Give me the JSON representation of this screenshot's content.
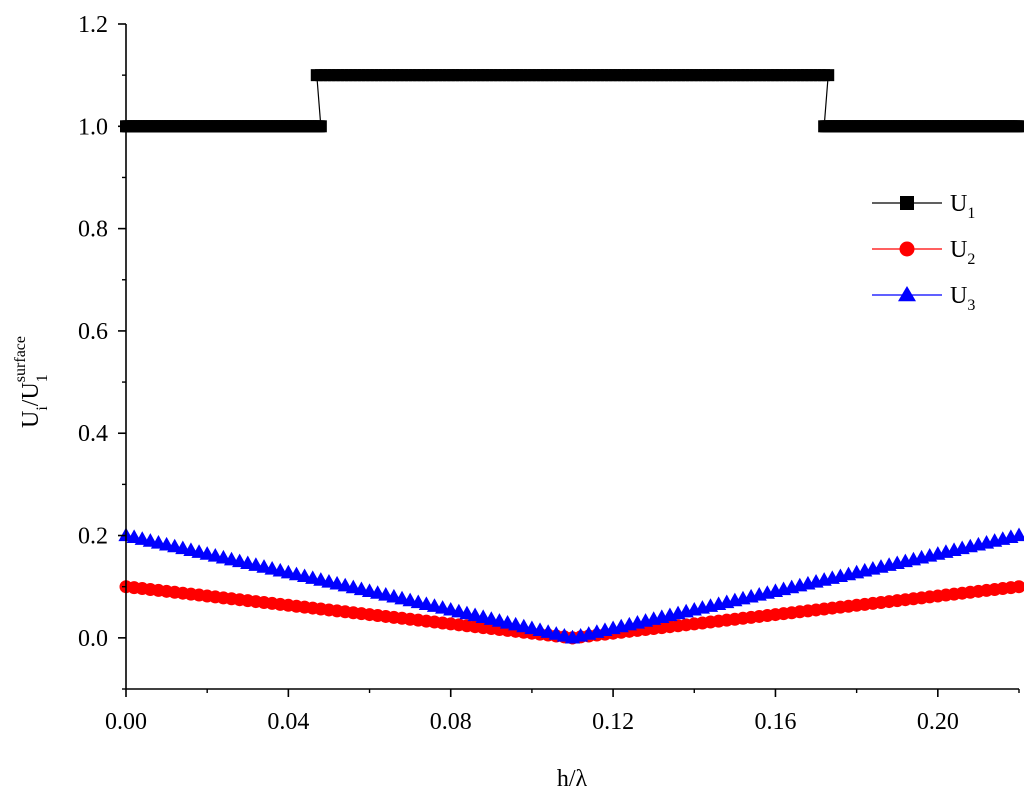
{
  "chart_data": {
    "type": "line",
    "xlabel": "h/λ",
    "ylabel": {
      "base": "U",
      "sub1": "i",
      "slash": "/U",
      "sub2": "1",
      "sup2": "surface"
    },
    "xlim": [
      0.0,
      0.22
    ],
    "ylim": [
      -0.1,
      1.2
    ],
    "x_ticks": [
      0.0,
      0.04,
      0.08,
      0.12,
      0.16,
      0.2
    ],
    "x_tick_labels": [
      "0.00",
      "0.04",
      "0.08",
      "0.12",
      "0.16",
      "0.20"
    ],
    "y_ticks": [
      0.0,
      0.2,
      0.4,
      0.6,
      0.8,
      1.0,
      1.2
    ],
    "y_tick_labels": [
      "0.0",
      "0.2",
      "0.4",
      "0.6",
      "0.8",
      "1.0",
      "1.2"
    ],
    "grid": false,
    "legend_position": "right",
    "series": [
      {
        "name": "U",
        "name_sub": "1",
        "color": "#000000",
        "marker": "square",
        "segments": [
          {
            "x_start": 0.0,
            "x_end": 0.048,
            "y": 1.0
          },
          {
            "x_start": 0.047,
            "x_end": 0.173,
            "y": 1.1
          },
          {
            "x_start": 0.172,
            "x_end": 0.22,
            "y": 1.0
          }
        ]
      },
      {
        "name": "U",
        "name_sub": "2",
        "color": "#ff0000",
        "marker": "circle",
        "points": [
          [
            0.0,
            0.1
          ],
          [
            0.11,
            0.0
          ],
          [
            0.22,
            0.1
          ]
        ]
      },
      {
        "name": "U",
        "name_sub": "3",
        "color": "#0000ff",
        "marker": "triangle",
        "points": [
          [
            0.0,
            0.2
          ],
          [
            0.11,
            0.0
          ],
          [
            0.22,
            0.2
          ]
        ]
      }
    ]
  }
}
